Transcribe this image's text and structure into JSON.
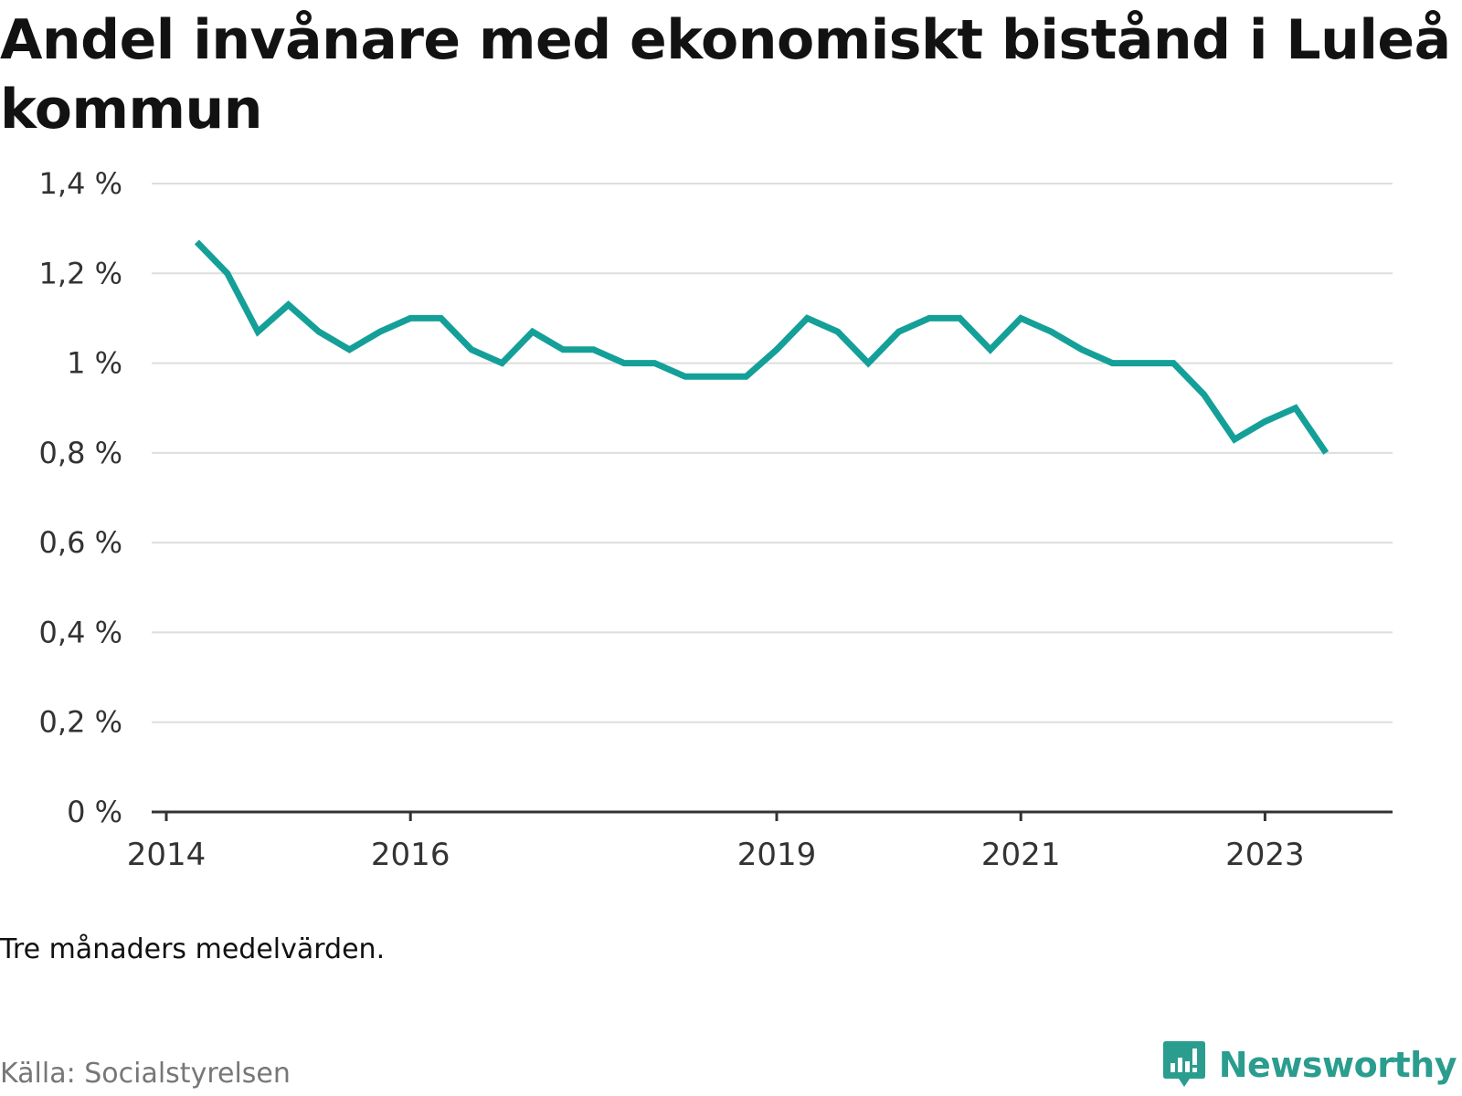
{
  "chart_data": {
    "type": "line",
    "title": "Andel invånare med ekonomiskt bistånd i Luleå kommun",
    "note": "Tre månaders medelvärden.",
    "source": "Källa: Socialstyrelsen",
    "brand": "Newsworthy",
    "color": "#14a098",
    "y_unit": "%",
    "ylim": [
      0,
      1.4
    ],
    "y_ticks": [
      {
        "value": 0,
        "label": "0 %"
      },
      {
        "value": 0.2,
        "label": "0,2 %"
      },
      {
        "value": 0.4,
        "label": "0,4 %"
      },
      {
        "value": 0.6,
        "label": "0,6 %"
      },
      {
        "value": 0.8,
        "label": "0,8 %"
      },
      {
        "value": 1.0,
        "label": "1 %"
      },
      {
        "value": 1.2,
        "label": "1,2 %"
      },
      {
        "value": 1.4,
        "label": "1,4 %"
      }
    ],
    "x_ticks": [
      {
        "date": "2014-01",
        "label": "2014"
      },
      {
        "date": "2016-01",
        "label": "2016"
      },
      {
        "date": "2019-01",
        "label": "2019"
      },
      {
        "date": "2021-01",
        "label": "2021"
      },
      {
        "date": "2023-01",
        "label": "2023"
      }
    ],
    "x": [
      "2014-04",
      "2014-07",
      "2014-10",
      "2015-01",
      "2015-04",
      "2015-07",
      "2015-10",
      "2016-01",
      "2016-04",
      "2016-07",
      "2016-10",
      "2017-01",
      "2017-04",
      "2017-07",
      "2017-10",
      "2018-01",
      "2018-04",
      "2018-07",
      "2018-10",
      "2019-01",
      "2019-04",
      "2019-07",
      "2019-10",
      "2020-01",
      "2020-04",
      "2020-07",
      "2020-10",
      "2021-01",
      "2021-04",
      "2021-07",
      "2021-10",
      "2022-01",
      "2022-04",
      "2022-07",
      "2022-10",
      "2023-01",
      "2023-04",
      "2023-07"
    ],
    "series": [
      {
        "values": [
          1.27,
          1.2,
          1.07,
          1.13,
          1.07,
          1.03,
          1.07,
          1.1,
          1.1,
          1.03,
          1.0,
          1.07,
          1.03,
          1.03,
          1.0,
          1.0,
          0.97,
          0.97,
          0.97,
          1.03,
          1.1,
          1.07,
          1.0,
          1.07,
          1.1,
          1.1,
          1.03,
          1.1,
          1.07,
          1.03,
          1.0,
          1.0,
          1.0,
          0.93,
          0.83,
          0.87,
          0.9,
          0.8
        ]
      }
    ]
  }
}
